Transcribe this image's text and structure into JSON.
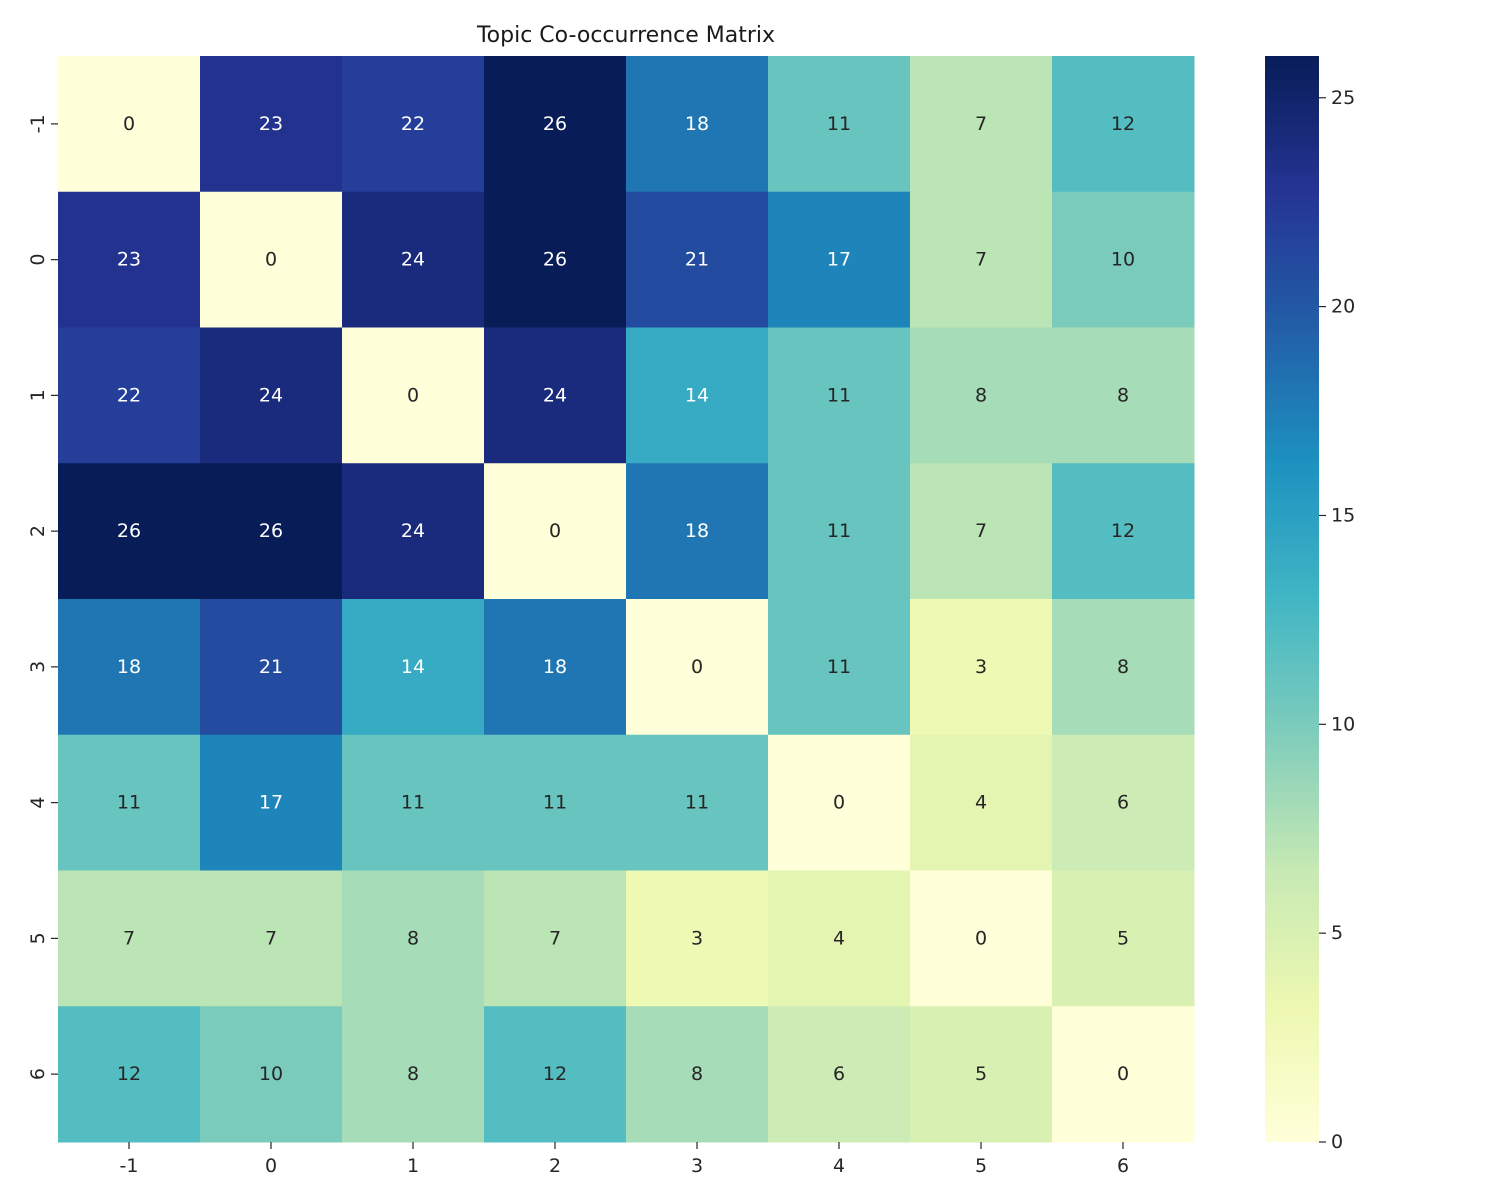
{
  "chart_data": {
    "type": "heatmap",
    "title": "Topic Co-occurrence Matrix",
    "xlabel": "",
    "ylabel": "",
    "x_categories": [
      "-1",
      "0",
      "1",
      "2",
      "3",
      "4",
      "5",
      "6"
    ],
    "y_categories": [
      "-1",
      "0",
      "1",
      "2",
      "3",
      "4",
      "5",
      "6"
    ],
    "values": [
      [
        0,
        23,
        22,
        26,
        18,
        11,
        7,
        12
      ],
      [
        23,
        0,
        24,
        26,
        21,
        17,
        7,
        10
      ],
      [
        22,
        24,
        0,
        24,
        14,
        11,
        8,
        8
      ],
      [
        26,
        26,
        24,
        0,
        18,
        11,
        7,
        12
      ],
      [
        18,
        21,
        14,
        18,
        0,
        11,
        3,
        8
      ],
      [
        11,
        17,
        11,
        11,
        11,
        0,
        4,
        6
      ],
      [
        7,
        7,
        8,
        7,
        3,
        4,
        0,
        5
      ],
      [
        12,
        10,
        8,
        12,
        8,
        6,
        5,
        0
      ]
    ],
    "colorbar": {
      "min": 0,
      "max": 26,
      "ticks": [
        0,
        5,
        10,
        15,
        20,
        25
      ]
    },
    "colormap": "YlGnBu",
    "colormap_stops": [
      "#ffffd9",
      "#edf8b1",
      "#c7e9b4",
      "#7fcdbb",
      "#41b6c4",
      "#1d91c0",
      "#225ea8",
      "#253494",
      "#081d58"
    ],
    "annotation_colors": {
      "light": "#ffffff",
      "dark": "#262626"
    }
  }
}
